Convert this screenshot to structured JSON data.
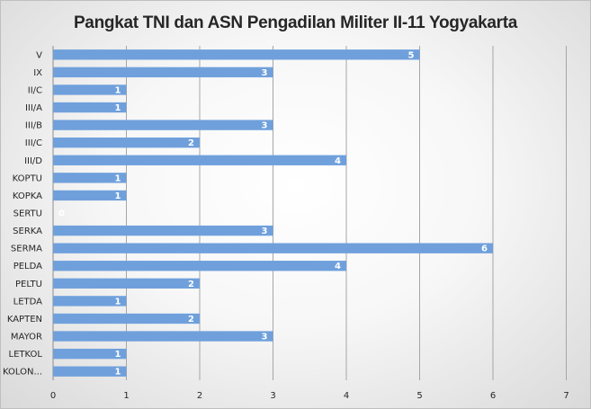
{
  "chart_data": {
    "type": "bar",
    "orientation": "horizontal",
    "title": "Pangkat TNI dan ASN Pengadilan Militer II-11 Yogyakarta",
    "categories": [
      "V",
      "IX",
      "II/C",
      "III/A",
      "III/B",
      "III/C",
      "III/D",
      "KOPTU",
      "KOPKA",
      "SERTU",
      "SERKA",
      "SERMA",
      "PELDA",
      "PELTU",
      "LETDA",
      "KAPTEN",
      "MAYOR",
      "LETKOL",
      "KOLON..."
    ],
    "values": [
      5,
      3,
      1,
      1,
      3,
      2,
      4,
      1,
      1,
      0,
      3,
      6,
      4,
      2,
      1,
      2,
      3,
      1,
      1
    ],
    "x_ticks": [
      "0",
      "1",
      "2",
      "3",
      "4",
      "5",
      "6",
      "7"
    ],
    "xlim": [
      0,
      7
    ],
    "grid": "vertical",
    "data_labels": "inside-end",
    "bar_color": "#6fa0dc",
    "gridline_color": "#a6a6a6",
    "label_color": "#ffffff"
  }
}
